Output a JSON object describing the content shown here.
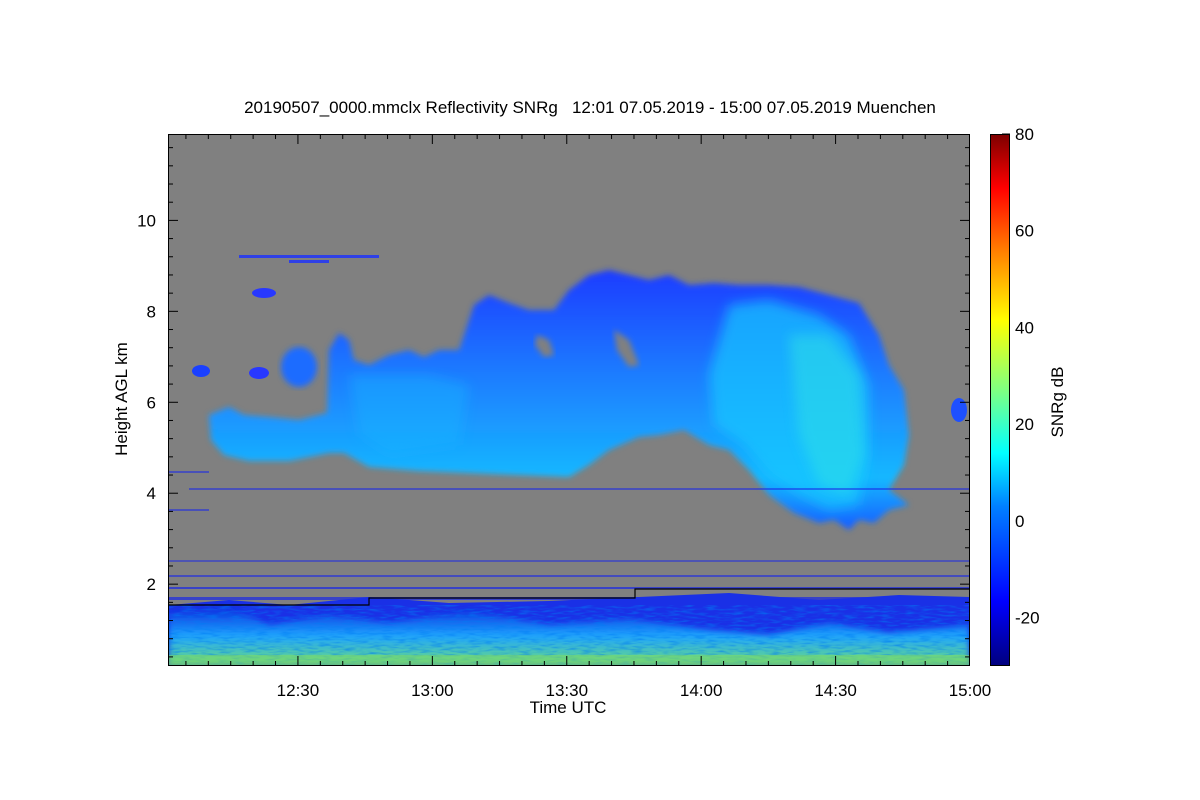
{
  "chart_data": {
    "type": "heatmap",
    "title": "20190507_0000.mmclx Reflectivity SNRg   12:01 07.05.2019 - 15:00 07.05.2019 Muenchen",
    "xlabel": "Time UTC",
    "ylabel": "Height AGL km",
    "x_range": [
      "12:01",
      "15:00"
    ],
    "x_ticks": [
      "12:30",
      "13:00",
      "13:30",
      "14:00",
      "14:30",
      "15:00"
    ],
    "y_range": [
      0.2,
      11.9
    ],
    "y_ticks": [
      2,
      4,
      6,
      8,
      10
    ],
    "colorbar": {
      "label": "SNRg dB",
      "range": [
        -30,
        80
      ],
      "ticks": [
        80,
        60,
        40,
        20,
        0,
        -20
      ],
      "colormap": "jet"
    },
    "background_color": "#808080",
    "features": [
      {
        "name": "upper cloud band",
        "time_start": "12:09",
        "time_end": "14:50",
        "base_km": 3.3,
        "top_km": 8.9
      },
      {
        "name": "boundary layer echo",
        "time_start": "12:01",
        "time_end": "15:00",
        "base_km": 0.2,
        "top_km": 1.8
      },
      {
        "name": "cloud base line",
        "points": [
          [
            "12:01",
            1.6
          ],
          [
            "12:45",
            1.6
          ],
          [
            "12:46",
            1.75
          ],
          [
            "13:45",
            1.75
          ],
          [
            "13:46",
            1.95
          ],
          [
            "15:00",
            1.95
          ]
        ]
      }
    ]
  }
}
